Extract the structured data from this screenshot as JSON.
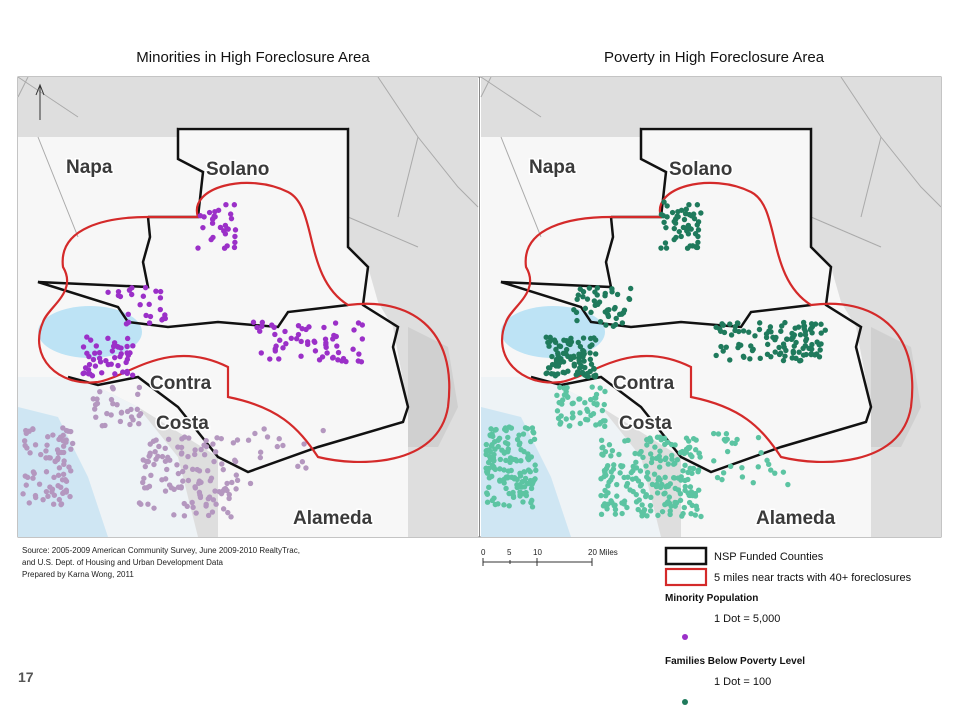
{
  "maps": [
    {
      "title": "Minorities in High Foreclosure Area",
      "labels": {
        "napa": "Napa",
        "solano": "Solano",
        "contra": "Contra",
        "costa": "Costa",
        "alameda": "Alameda"
      }
    },
    {
      "title": "Poverty in High Foreclosure Area",
      "labels": {
        "napa": "Napa",
        "solano": "Solano",
        "contra": "Contra",
        "costa": "Costa",
        "alameda": "Alameda"
      }
    }
  ],
  "source": [
    "Source:  2005-2009 American Community Survey, June 2009-2010 RealtyTrac,",
    "and U.S. Dept. of Housing and Urban Development Data",
    "Prepared by Karna Wong, 2011"
  ],
  "scale_bar": [
    "0",
    "5",
    "10",
    "20 Miles"
  ],
  "legend": {
    "nsp": "NSP Funded Counties",
    "buffer": "5 miles near tracts with 40+ foreclosures",
    "minority_title": "Minority Population",
    "minority_dot": "1 Dot = 5,000",
    "poverty_title": "Families Below Poverty Level",
    "poverty_dot": "1 Dot = 100"
  },
  "page_number": "17"
}
